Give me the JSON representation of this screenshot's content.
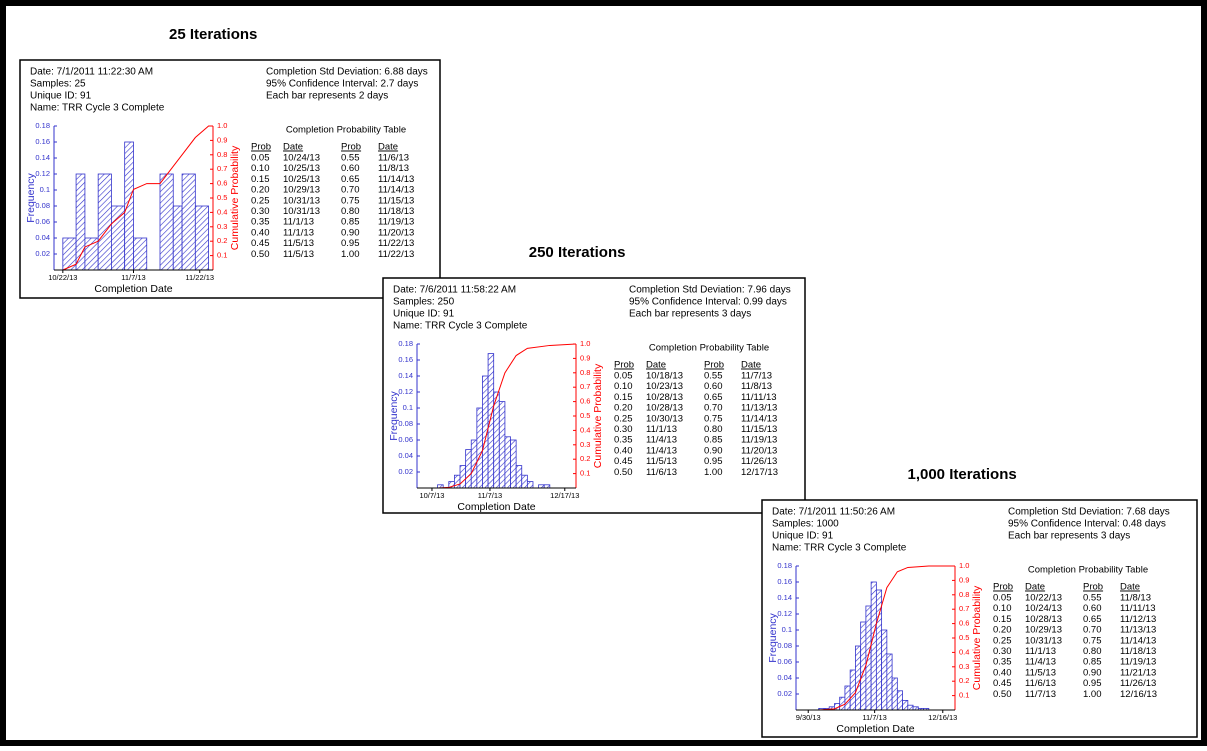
{
  "panels": [
    {
      "heading": "25 Iterations",
      "info": [
        "Date: 7/1/2011 11:22:30 AM",
        "Samples: 25",
        "Unique ID: 91",
        "Name: TRR Cycle 3 Complete"
      ],
      "stats": [
        "Completion Std Deviation: 6.88 days",
        "95% Confidence Interval: 2.7 days",
        "Each bar represents 2 days"
      ],
      "table": {
        "title": "Completion Probability Table",
        "headers": [
          "Prob",
          "Date",
          "Prob",
          "Date"
        ],
        "rows": [
          [
            "0.05",
            "10/24/13",
            "0.55",
            "11/6/13"
          ],
          [
            "0.10",
            "10/25/13",
            "0.60",
            "11/8/13"
          ],
          [
            "0.15",
            "10/25/13",
            "0.65",
            "11/14/13"
          ],
          [
            "0.20",
            "10/29/13",
            "0.70",
            "11/14/13"
          ],
          [
            "0.25",
            "10/31/13",
            "0.75",
            "11/15/13"
          ],
          [
            "0.30",
            "10/31/13",
            "0.80",
            "11/18/13"
          ],
          [
            "0.35",
            "11/1/13",
            "0.85",
            "11/19/13"
          ],
          [
            "0.40",
            "11/1/13",
            "0.90",
            "11/20/13"
          ],
          [
            "0.45",
            "11/5/13",
            "0.95",
            "11/22/13"
          ],
          [
            "0.50",
            "11/5/13",
            "1.00",
            "11/22/13"
          ]
        ]
      }
    },
    {
      "heading": "250 Iterations",
      "info": [
        "Date: 7/6/2011 11:58:22 AM",
        "Samples: 250",
        "Unique ID: 91",
        "Name: TRR Cycle 3 Complete"
      ],
      "stats": [
        "Completion Std Deviation: 7.96 days",
        "95% Confidence Interval: 0.99 days",
        "Each bar represents 3 days"
      ],
      "table": {
        "title": "Completion Probability Table",
        "headers": [
          "Prob",
          "Date",
          "Prob",
          "Date"
        ],
        "rows": [
          [
            "0.05",
            "10/18/13",
            "0.55",
            "11/7/13"
          ],
          [
            "0.10",
            "10/23/13",
            "0.60",
            "11/8/13"
          ],
          [
            "0.15",
            "10/28/13",
            "0.65",
            "11/11/13"
          ],
          [
            "0.20",
            "10/28/13",
            "0.70",
            "11/13/13"
          ],
          [
            "0.25",
            "10/30/13",
            "0.75",
            "11/14/13"
          ],
          [
            "0.30",
            "11/1/13",
            "0.80",
            "11/15/13"
          ],
          [
            "0.35",
            "11/4/13",
            "0.85",
            "11/19/13"
          ],
          [
            "0.40",
            "11/4/13",
            "0.90",
            "11/20/13"
          ],
          [
            "0.45",
            "11/5/13",
            "0.95",
            "11/26/13"
          ],
          [
            "0.50",
            "11/6/13",
            "1.00",
            "12/17/13"
          ]
        ]
      }
    },
    {
      "heading": "1,000 Iterations",
      "info": [
        "Date: 7/1/2011 11:50:26 AM",
        "Samples: 1000",
        "Unique ID: 91",
        "Name: TRR Cycle 3 Complete"
      ],
      "stats": [
        "Completion Std Deviation: 7.68 days",
        "95% Confidence Interval: 0.48 days",
        "Each bar represents 3 days"
      ],
      "table": {
        "title": "Completion Probability Table",
        "headers": [
          "Prob",
          "Date",
          "Prob",
          "Date"
        ],
        "rows": [
          [
            "0.05",
            "10/22/13",
            "0.55",
            "11/8/13"
          ],
          [
            "0.10",
            "10/24/13",
            "0.60",
            "11/11/13"
          ],
          [
            "0.15",
            "10/28/13",
            "0.65",
            "11/12/13"
          ],
          [
            "0.20",
            "10/29/13",
            "0.70",
            "11/13/13"
          ],
          [
            "0.25",
            "10/31/13",
            "0.75",
            "11/14/13"
          ],
          [
            "0.30",
            "11/1/13",
            "0.80",
            "11/18/13"
          ],
          [
            "0.35",
            "11/4/13",
            "0.85",
            "11/19/13"
          ],
          [
            "0.40",
            "11/5/13",
            "0.90",
            "11/21/13"
          ],
          [
            "0.45",
            "11/6/13",
            "0.95",
            "11/26/13"
          ],
          [
            "0.50",
            "11/7/13",
            "1.00",
            "12/16/13"
          ]
        ]
      }
    }
  ],
  "chart_data": [
    {
      "type": "histogram",
      "xlabel": "Completion Date",
      "ylabel": "Frequency",
      "y2label": "Cumulative Probability",
      "color": "#3333cc",
      "bins": [
        "10/22/13",
        "10/25/13",
        "10/27/13",
        "10/30/13",
        "11/2/13",
        "11/5/13",
        "11/7/13",
        "11/10/13",
        "11/13/13",
        "11/16/13",
        "11/18/13",
        "11/21/13",
        "11/24/13"
      ],
      "values": [
        0.04,
        0.12,
        0.04,
        0.12,
        0.08,
        0.16,
        0.04,
        0,
        0.12,
        0.08,
        0.12,
        0.08
      ],
      "xlim": [
        "10/20/13",
        "11/25/13"
      ],
      "xticks": [
        "10/22/13",
        "11/7/13",
        "11/22/13"
      ],
      "ylim": [
        0,
        0.18
      ],
      "yticks": [
        0.02,
        0.04,
        0.06,
        0.08,
        0.1,
        0.12,
        0.14,
        0.16,
        0.18
      ],
      "y2lim": [
        0,
        1
      ],
      "y2ticks": [
        0.1,
        0.2,
        0.3,
        0.4,
        0.5,
        0.6,
        0.7,
        0.8,
        0.9,
        {
          "value": 1,
          "label": "1.0"
        }
      ],
      "series": [
        {
          "color": "#ff0000",
          "axis": "y2",
          "x": [
            "10/22/13",
            "10/25/13",
            "10/27/13",
            "10/30/13",
            "11/2/13",
            "11/5/13",
            "11/7/13",
            "11/10/13",
            "11/13/13",
            "11/16/13",
            "11/18/13",
            "11/21/13",
            "11/24/13",
            "11/25/13"
          ],
          "values": [
            0,
            0.04,
            0.16,
            0.2,
            0.32,
            0.4,
            0.56,
            0.6,
            0.6,
            0.72,
            0.8,
            0.92,
            1,
            1
          ]
        }
      ]
    },
    {
      "type": "histogram",
      "xlabel": "Completion Date",
      "ylabel": "Frequency",
      "y2label": "Cumulative Probability",
      "color": "#3333cc",
      "bins": [
        "10/10/13",
        "10/13/13",
        "10/16/13",
        "10/19/13",
        "10/22/13",
        "10/25/13",
        "10/28/13",
        "10/31/13",
        "11/3/13",
        "11/6/13",
        "11/9/13",
        "11/12/13",
        "11/15/13",
        "11/18/13",
        "11/21/13",
        "11/24/13",
        "11/27/13",
        "11/30/13",
        "12/3/13",
        "12/6/13",
        "12/9/13"
      ],
      "values": [
        0.004,
        0,
        0.008,
        0.016,
        0.028,
        0.048,
        0.06,
        0.1,
        0.14,
        0.168,
        0.12,
        0.108,
        0.064,
        0.06,
        0.028,
        0.016,
        0.008,
        0,
        0.004,
        0.004
      ],
      "xlim": [
        "9/29/13",
        "12/23/13"
      ],
      "xticks": [
        "10/7/13",
        "11/7/13",
        "12/17/13"
      ],
      "ylim": [
        0,
        0.18
      ],
      "yticks": [
        0.02,
        0.04,
        0.06,
        0.08,
        0.1,
        0.12,
        0.14,
        0.16,
        0.18
      ],
      "y2lim": [
        0,
        1
      ],
      "y2ticks": [
        0.1,
        0.2,
        0.3,
        0.4,
        0.5,
        0.6,
        0.7,
        0.8,
        0.9,
        {
          "value": 1,
          "label": "1.0"
        }
      ],
      "series": [
        {
          "color": "#ff0000",
          "axis": "y2",
          "x": [
            "10/10/13",
            "10/16/13",
            "10/22/13",
            "10/28/13",
            "11/3/13",
            "11/9/13",
            "11/15/13",
            "11/21/13",
            "11/27/13",
            "12/9/13",
            "12/23/13"
          ],
          "values": [
            0,
            0.004,
            0.028,
            0.1,
            0.26,
            0.57,
            0.8,
            0.92,
            0.97,
            0.99,
            1
          ]
        }
      ]
    },
    {
      "type": "histogram",
      "xlabel": "Completion Date",
      "ylabel": "Frequency",
      "y2label": "Cumulative Probability",
      "color": "#3333cc",
      "bins": [
        "10/6/13",
        "10/9/13",
        "10/12/13",
        "10/15/13",
        "10/18/13",
        "10/21/13",
        "10/24/13",
        "10/27/13",
        "10/30/13",
        "11/2/13",
        "11/5/13",
        "11/8/13",
        "11/11/13",
        "11/14/13",
        "11/17/13",
        "11/20/13",
        "11/23/13",
        "11/26/13",
        "11/29/13",
        "12/2/13",
        "12/5/13",
        "12/8/13"
      ],
      "values": [
        0.002,
        0.002,
        0.004,
        0.008,
        0.016,
        0.03,
        0.05,
        0.08,
        0.11,
        0.13,
        0.16,
        0.15,
        0.1,
        0.07,
        0.04,
        0.024,
        0.012,
        0.006,
        0.004,
        0.002,
        0.002
      ],
      "xlim": [
        "9/23/13",
        "12/23/13"
      ],
      "xticks": [
        "9/30/13",
        "11/7/13",
        "12/16/13"
      ],
      "ylim": [
        0,
        0.18
      ],
      "yticks": [
        0.02,
        0.04,
        0.06,
        0.08,
        0.1,
        0.12,
        0.14,
        0.16,
        0.18
      ],
      "y2lim": [
        0,
        1
      ],
      "y2ticks": [
        0.1,
        0.2,
        0.3,
        0.4,
        0.5,
        0.6,
        0.7,
        0.8,
        0.9,
        {
          "value": 1,
          "label": "1.0"
        }
      ],
      "series": [
        {
          "color": "#ff0000",
          "axis": "y2",
          "x": [
            "10/6/13",
            "10/15/13",
            "10/21/13",
            "10/27/13",
            "11/2/13",
            "11/8/13",
            "11/14/13",
            "11/20/13",
            "11/26/13",
            "12/8/13",
            "12/23/13"
          ],
          "values": [
            0,
            0.008,
            0.04,
            0.12,
            0.31,
            0.6,
            0.85,
            0.96,
            0.99,
            1,
            1
          ]
        }
      ]
    }
  ]
}
